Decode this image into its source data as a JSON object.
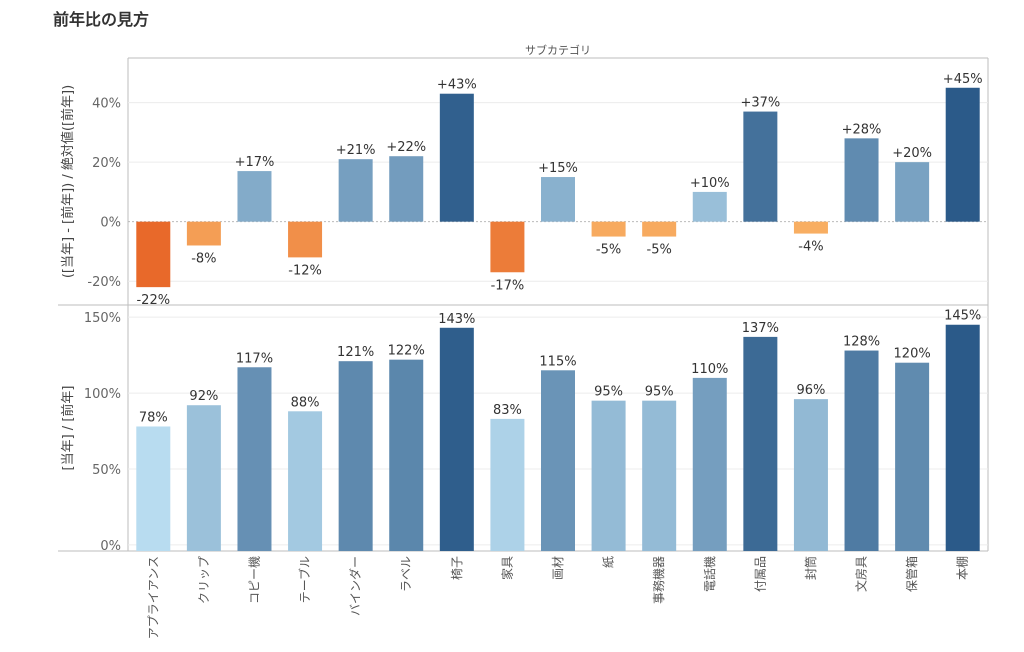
{
  "page_title": "前年比の見方",
  "header_label": "サブカテゴリ",
  "colors": {
    "orange_dark": "#e8692a",
    "orange_mid": "#f5862f",
    "orange_light": "#fbbd6e",
    "blue_light": "#b8dcf0",
    "blue_dark": "#2b5a89",
    "grid": "#ececec",
    "axis": "#bdbdbd"
  },
  "chart_data": [
    {
      "type": "bar",
      "ylabel": "([当年] - [前年]) / 絶対値([前年])",
      "categories": [
        "アプライアンス",
        "クリップ",
        "コピー機",
        "テーブル",
        "バインダー",
        "ラベル",
        "椅子",
        "家具",
        "画材",
        "紙",
        "事務機器",
        "電話機",
        "付属品",
        "封筒",
        "文房具",
        "保管箱",
        "本棚"
      ],
      "values": [
        -22,
        -8,
        17,
        -12,
        21,
        22,
        43,
        -17,
        15,
        -5,
        -5,
        10,
        37,
        -4,
        28,
        20,
        45
      ],
      "value_labels": [
        "-22%",
        "-8%",
        "+17%",
        "-12%",
        "+21%",
        "+22%",
        "+43%",
        "-17%",
        "+15%",
        "-5%",
        "-5%",
        "+10%",
        "+37%",
        "-4%",
        "+28%",
        "+20%",
        "+45%"
      ],
      "yticks": [
        -20,
        0,
        20,
        40
      ],
      "ytick_labels": [
        "-20%",
        "0%",
        "20%",
        "40%"
      ],
      "ylim": [
        -28,
        55
      ]
    },
    {
      "type": "bar",
      "ylabel": "[当年] / [前年]",
      "categories": [
        "アプライアンス",
        "クリップ",
        "コピー機",
        "テーブル",
        "バインダー",
        "ラベル",
        "椅子",
        "家具",
        "画材",
        "紙",
        "事務機器",
        "電話機",
        "付属品",
        "封筒",
        "文房具",
        "保管箱",
        "本棚"
      ],
      "values": [
        78,
        92,
        117,
        88,
        121,
        122,
        143,
        83,
        115,
        95,
        95,
        110,
        137,
        96,
        128,
        120,
        145
      ],
      "value_labels": [
        "78%",
        "92%",
        "117%",
        "88%",
        "121%",
        "122%",
        "143%",
        "83%",
        "115%",
        "95%",
        "95%",
        "110%",
        "137%",
        "96%",
        "128%",
        "120%",
        "145%"
      ],
      "yticks": [
        0,
        50,
        100,
        150
      ],
      "ytick_labels": [
        "0%",
        "50%",
        "100%",
        "150%"
      ],
      "ylim": [
        -4,
        158
      ]
    }
  ]
}
